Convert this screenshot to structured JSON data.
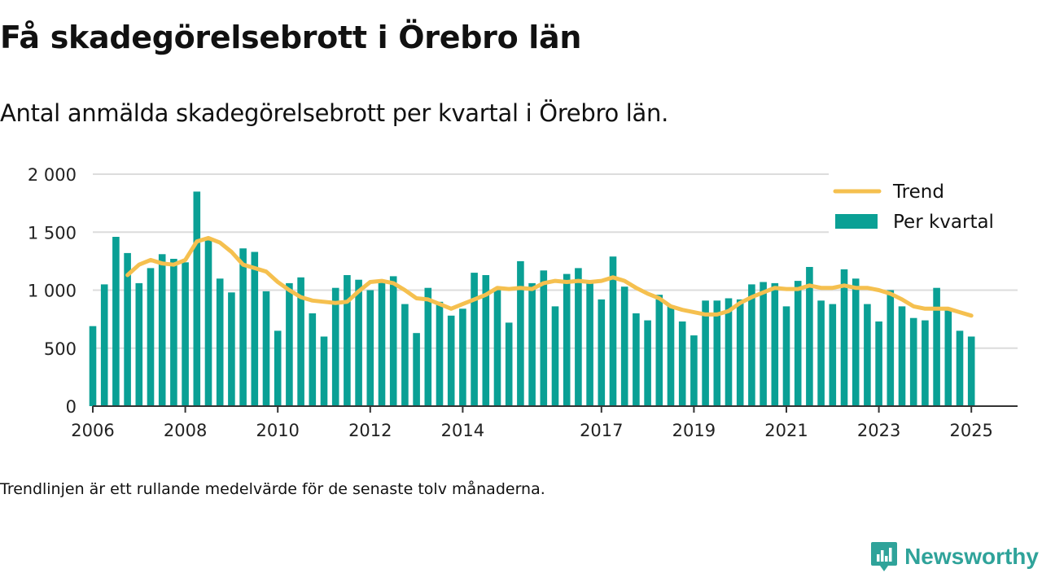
{
  "title": "Få skadegörelsebrott i Örebro län",
  "subtitle": "Antal anmälda skadegörelsebrott per kvartal i Örebro län.",
  "footnote": "Trendlinjen är ett rullande medelvärde för de senaste tolv månaderna.",
  "brand": "Newsworthy",
  "colors": {
    "bars": "#0aa095",
    "trend": "#f5c04f",
    "logo": "#2fa39a",
    "grid": "#dcdcdc",
    "axis": "#333333"
  },
  "legend": {
    "trend": "Trend",
    "bars": "Per kvartal"
  },
  "chart_data": {
    "type": "bar",
    "x_ticks": [
      "2006",
      "2008",
      "2010",
      "2012",
      "2014",
      "2017",
      "2019",
      "2021",
      "2023",
      "2025"
    ],
    "y_ticks": [
      "0",
      "500",
      "1 000",
      "1 500",
      "2 000"
    ],
    "ylim": [
      0,
      2000
    ],
    "legend_position": "top-right",
    "grid": true,
    "series": [
      {
        "name": "Per kvartal",
        "type": "bar",
        "x": [
          "2006 Q1",
          "2006 Q2",
          "2006 Q3",
          "2006 Q4",
          "2007 Q1",
          "2007 Q2",
          "2007 Q3",
          "2007 Q4",
          "2008 Q1",
          "2008 Q2",
          "2008 Q3",
          "2008 Q4",
          "2009 Q1",
          "2009 Q2",
          "2009 Q3",
          "2009 Q4",
          "2010 Q1",
          "2010 Q2",
          "2010 Q3",
          "2010 Q4",
          "2011 Q1",
          "2011 Q2",
          "2011 Q3",
          "2011 Q4",
          "2012 Q1",
          "2012 Q2",
          "2012 Q3",
          "2012 Q4",
          "2013 Q1",
          "2013 Q2",
          "2013 Q3",
          "2013 Q4",
          "2014 Q1",
          "2014 Q2",
          "2014 Q3",
          "2014 Q4",
          "2015 Q1",
          "2015 Q2",
          "2015 Q3",
          "2015 Q4",
          "2016 Q1",
          "2016 Q2",
          "2016 Q3",
          "2016 Q4",
          "2017 Q1",
          "2017 Q2",
          "2017 Q3",
          "2017 Q4",
          "2018 Q1",
          "2018 Q2",
          "2018 Q3",
          "2018 Q4",
          "2019 Q1",
          "2019 Q2",
          "2019 Q3",
          "2019 Q4",
          "2020 Q1",
          "2020 Q2",
          "2020 Q3",
          "2020 Q4",
          "2021 Q1",
          "2021 Q2",
          "2021 Q3",
          "2021 Q4",
          "2022 Q1",
          "2022 Q2",
          "2022 Q3",
          "2022 Q4",
          "2023 Q1",
          "2023 Q2",
          "2023 Q3",
          "2023 Q4",
          "2024 Q1",
          "2024 Q2",
          "2024 Q3",
          "2024 Q4",
          "2025 Q1"
        ],
        "values": [
          690,
          1050,
          1460,
          1320,
          1060,
          1190,
          1310,
          1270,
          1240,
          1850,
          1440,
          1100,
          980,
          1360,
          1330,
          990,
          650,
          1060,
          1110,
          800,
          600,
          1020,
          1130,
          1090,
          1000,
          1090,
          1120,
          880,
          630,
          1020,
          900,
          780,
          840,
          1150,
          1130,
          1000,
          720,
          1250,
          1060,
          1170,
          860,
          1140,
          1190,
          1060,
          920,
          1290,
          1030,
          800,
          740,
          960,
          870,
          730,
          610,
          910,
          910,
          930,
          920,
          1050,
          1070,
          1060,
          860,
          1080,
          1200,
          910,
          880,
          1180,
          1100,
          880,
          730,
          1000,
          860,
          760,
          740,
          1020,
          830,
          650,
          600
        ]
      },
      {
        "name": "Trend",
        "type": "line",
        "x": [
          "2006 Q4",
          "2007 Q1",
          "2007 Q2",
          "2007 Q3",
          "2007 Q4",
          "2008 Q1",
          "2008 Q2",
          "2008 Q3",
          "2008 Q4",
          "2009 Q1",
          "2009 Q2",
          "2009 Q3",
          "2009 Q4",
          "2010 Q1",
          "2010 Q2",
          "2010 Q3",
          "2010 Q4",
          "2011 Q1",
          "2011 Q2",
          "2011 Q3",
          "2011 Q4",
          "2012 Q1",
          "2012 Q2",
          "2012 Q3",
          "2012 Q4",
          "2013 Q1",
          "2013 Q2",
          "2013 Q3",
          "2013 Q4",
          "2014 Q1",
          "2014 Q2",
          "2014 Q3",
          "2014 Q4",
          "2015 Q1",
          "2015 Q2",
          "2015 Q3",
          "2015 Q4",
          "2016 Q1",
          "2016 Q2",
          "2016 Q3",
          "2016 Q4",
          "2017 Q1",
          "2017 Q2",
          "2017 Q3",
          "2017 Q4",
          "2018 Q1",
          "2018 Q2",
          "2018 Q3",
          "2018 Q4",
          "2019 Q1",
          "2019 Q2",
          "2019 Q3",
          "2019 Q4",
          "2020 Q1",
          "2020 Q2",
          "2020 Q3",
          "2020 Q4",
          "2021 Q1",
          "2021 Q2",
          "2021 Q3",
          "2021 Q4",
          "2022 Q1",
          "2022 Q2",
          "2022 Q3",
          "2022 Q4",
          "2023 Q1",
          "2023 Q2",
          "2023 Q3",
          "2023 Q4",
          "2024 Q1",
          "2024 Q2",
          "2024 Q3",
          "2024 Q4",
          "2025 Q1"
        ],
        "values": [
          1130,
          1220,
          1260,
          1230,
          1220,
          1260,
          1420,
          1450,
          1410,
          1330,
          1220,
          1190,
          1160,
          1070,
          1000,
          940,
          910,
          900,
          890,
          900,
          990,
          1070,
          1080,
          1060,
          1000,
          930,
          920,
          880,
          840,
          880,
          920,
          960,
          1020,
          1010,
          1020,
          1010,
          1060,
          1080,
          1070,
          1080,
          1070,
          1080,
          1110,
          1080,
          1020,
          970,
          930,
          860,
          830,
          810,
          790,
          790,
          820,
          890,
          940,
          980,
          1020,
          1010,
          1010,
          1040,
          1020,
          1020,
          1040,
          1020,
          1020,
          1000,
          970,
          920,
          860,
          840,
          840,
          840,
          810,
          780
        ]
      }
    ]
  }
}
